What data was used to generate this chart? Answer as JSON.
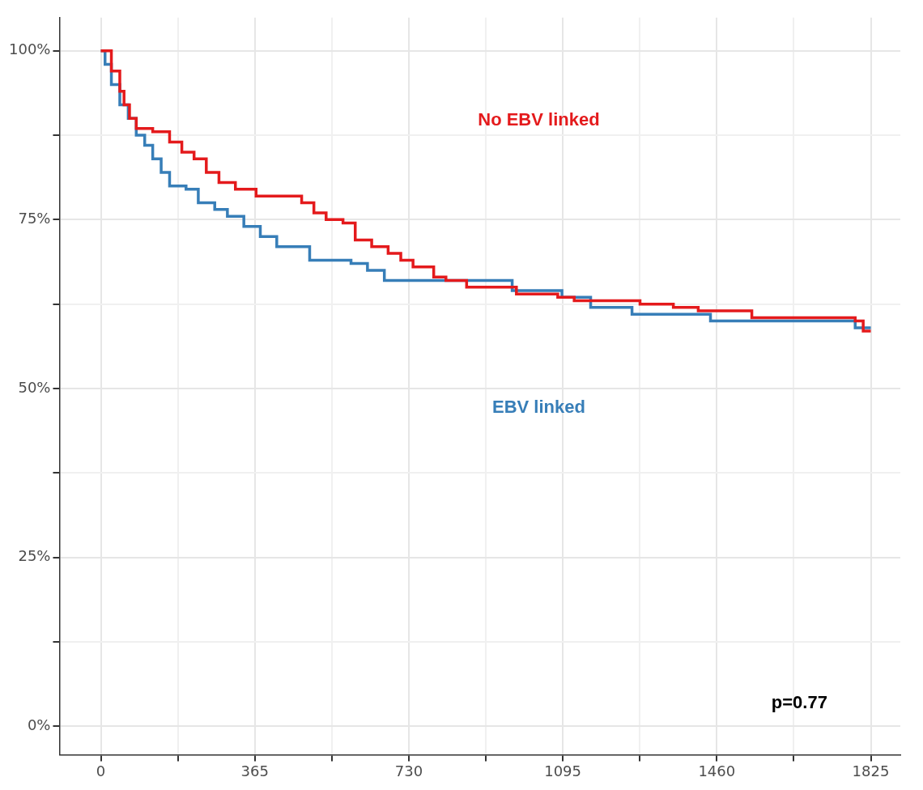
{
  "chart_data": {
    "type": "step",
    "xlim": [
      -98,
      1895
    ],
    "ylim": [
      -4.2,
      104.9
    ],
    "xticks": [
      0,
      {
        "value": 182.5,
        "label": null
      },
      365,
      {
        "value": 547.5,
        "label": null
      },
      730,
      {
        "value": 912.5,
        "label": null
      },
      1095,
      {
        "value": 1277.5,
        "label": null
      },
      1460,
      {
        "value": 1642.5,
        "label": null
      },
      1825
    ],
    "yticks": [
      {
        "value": 0,
        "label": "0%"
      },
      {
        "value": 12.5,
        "label": null
      },
      {
        "value": 25,
        "label": "25%"
      },
      {
        "value": 37.5,
        "label": null
      },
      {
        "value": 50,
        "label": "50%"
      },
      {
        "value": 62.5,
        "label": null
      },
      {
        "value": 75,
        "label": "75%"
      },
      {
        "value": 87.5,
        "label": null
      },
      {
        "value": 100,
        "label": "100%"
      }
    ],
    "grid": true,
    "legend": false,
    "annotations": [
      "p=0.77"
    ],
    "series": [
      {
        "name": "No EBV linked",
        "color": "#e41a1c",
        "x": [
          0,
          15,
          25,
          45,
          55,
          68,
          84,
          123,
          163,
          192,
          221,
          250,
          280,
          319,
          368,
          476,
          505,
          534,
          574,
          603,
          642,
          681,
          711,
          740,
          789,
          818,
          867,
          985,
          1083,
          1122,
          1278,
          1357,
          1416,
          1543,
          1788,
          1807,
          1825
        ],
        "values": [
          100,
          100,
          97,
          94,
          92,
          90,
          88.5,
          88,
          86.5,
          85,
          84,
          82,
          80.5,
          79.5,
          78.5,
          77.5,
          76,
          75,
          74.5,
          72,
          71,
          70,
          69,
          68,
          66.5,
          66,
          65,
          64,
          63.5,
          63,
          62.5,
          62,
          61.5,
          60.5,
          60,
          58.5,
          58.5
        ]
      },
      {
        "name": "EBV linked",
        "color": "#377eb8",
        "x": [
          0,
          10,
          25,
          45,
          65,
          84,
          104,
          123,
          143,
          163,
          202,
          231,
          270,
          300,
          339,
          378,
          417,
          495,
          593,
          632,
          672,
          975,
          1093,
          1161,
          1259,
          1445,
          1788,
          1825
        ],
        "values": [
          100,
          98,
          95,
          92,
          90,
          87.5,
          86,
          84,
          82,
          80,
          79.5,
          77.5,
          76.5,
          75.5,
          74,
          72.5,
          71,
          69,
          68.5,
          67.5,
          66,
          64.5,
          63.5,
          62,
          61,
          60,
          59,
          59
        ]
      }
    ]
  }
}
